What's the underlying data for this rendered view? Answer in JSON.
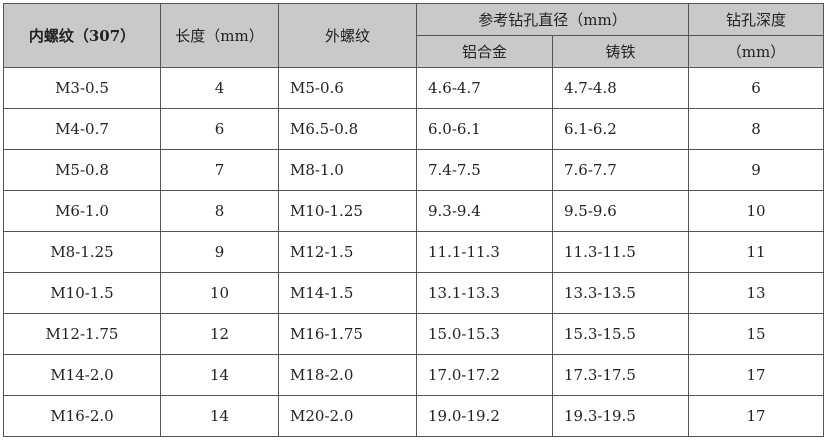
{
  "headers": {
    "internal_thread": "内螺纹（307）",
    "length": "长度（mm）",
    "external_thread": "外螺纹",
    "drill_diameter": "参考钻孔直径（mm）",
    "aluminum": "铝合金",
    "cast_iron": "铸铁",
    "drill_depth_line1": "钻孔深度",
    "drill_depth_line2": "（mm）"
  },
  "rows": [
    [
      "M3-0.5",
      "4",
      "M5-0.6",
      "4.6-4.7",
      "4.7-4.8",
      "6"
    ],
    [
      "M4-0.7",
      "6",
      "M6.5-0.8",
      "6.0-6.1",
      "6.1-6.2",
      "8"
    ],
    [
      "M5-0.8",
      "7",
      "M8-1.0",
      "7.4-7.5",
      "7.6-7.7",
      "9"
    ],
    [
      "M6-1.0",
      "8",
      "M10-1.25",
      "9.3-9.4",
      "9.5-9.6",
      "10"
    ],
    [
      "M8-1.25",
      "9",
      "M12-1.5",
      "11.1-11.3",
      "11.3-11.5",
      "11"
    ],
    [
      "M10-1.5",
      "10",
      "M14-1.5",
      "13.1-13.3",
      "13.3-13.5",
      "13"
    ],
    [
      "M12-1.75",
      "12",
      "M16-1.75",
      "15.0-15.3",
      "15.3-15.5",
      "15"
    ],
    [
      "M14-2.0",
      "14",
      "M18-2.0",
      "17.0-17.2",
      "17.3-17.5",
      "17"
    ],
    [
      "M16-2.0",
      "14",
      "M20-2.0",
      "19.0-19.2",
      "19.3-19.5",
      "17"
    ]
  ],
  "colors": {
    "header_bg": "#c9c9c9",
    "border": "#555555"
  }
}
